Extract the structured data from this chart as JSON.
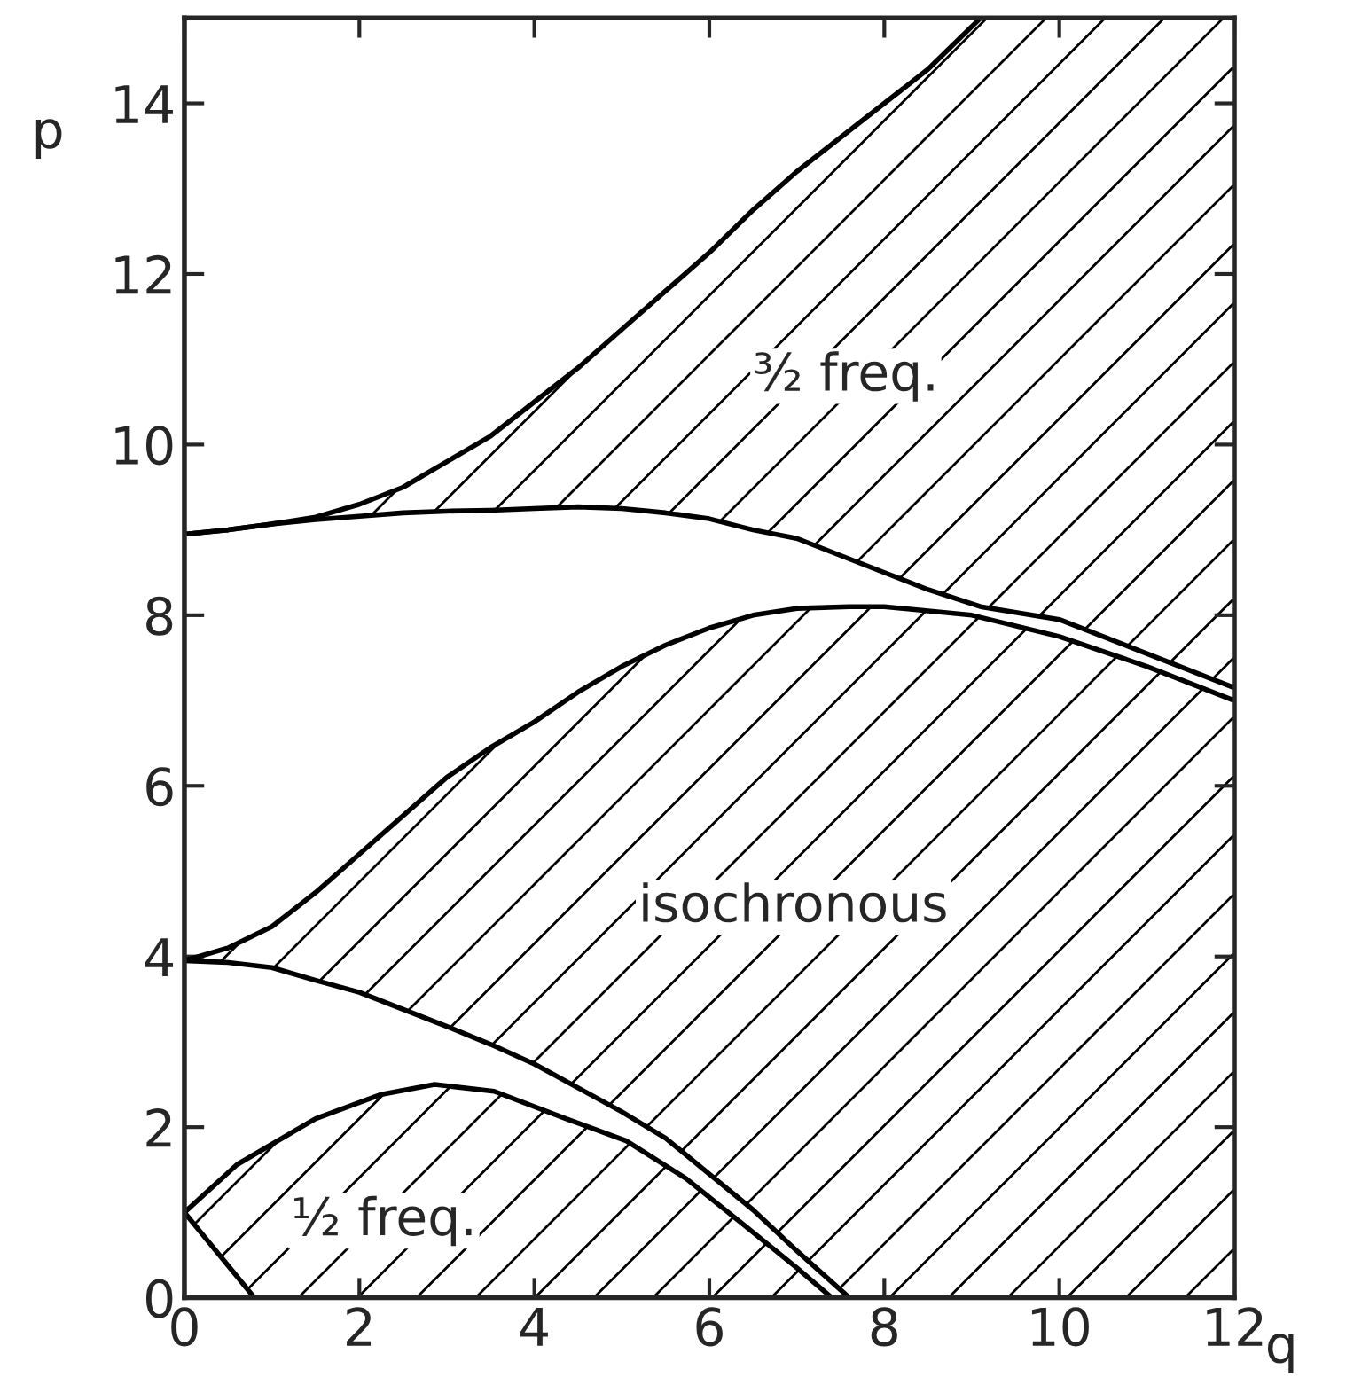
{
  "chart_data": {
    "type": "line",
    "xlabel": "q",
    "ylabel": "p",
    "xlim": [
      0,
      12
    ],
    "ylim": [
      0,
      15
    ],
    "xticks": [
      0,
      2,
      4,
      6,
      8,
      10,
      12
    ],
    "yticks": [
      0,
      2,
      4,
      6,
      8,
      10,
      12,
      14
    ],
    "grid": false,
    "legend": false,
    "marker": "none",
    "line_style": "solid",
    "series": [
      {
        "color": "#000000",
        "x": [
          0,
          0.8
        ],
        "values": [
          1.0,
          0
        ]
      },
      {
        "color": "#000000",
        "x": [
          0,
          0.6,
          1.5,
          2.24,
          2.86,
          3.54,
          4.36,
          5.05,
          5.73,
          6.4,
          7.0,
          7.4
        ],
        "values": [
          1.0,
          1.56,
          2.1,
          2.38,
          2.5,
          2.42,
          2.1,
          1.84,
          1.4,
          0.85,
          0.35,
          0
        ]
      },
      {
        "color": "#000000",
        "x": [
          0,
          0.5,
          1,
          1.5,
          2,
          2.5,
          3,
          3.5,
          4,
          4.5,
          5,
          5.5,
          6,
          6.5,
          7,
          7.6
        ],
        "values": [
          3.95,
          3.93,
          3.87,
          3.72,
          3.58,
          3.38,
          3.18,
          2.97,
          2.74,
          2.46,
          2.18,
          1.87,
          1.45,
          1.03,
          0.55,
          0
        ]
      },
      {
        "color": "#000000",
        "x": [
          0,
          0.5,
          1,
          1.5,
          2,
          2.5,
          3,
          3.5,
          4,
          4.5,
          5,
          5.5,
          6,
          6.5,
          7,
          7.6,
          8,
          9,
          10,
          11,
          12
        ],
        "values": [
          3.95,
          4.1,
          4.35,
          4.75,
          5.2,
          5.65,
          6.1,
          6.45,
          6.75,
          7.1,
          7.4,
          7.65,
          7.85,
          8.0,
          8.08,
          8.1,
          8.1,
          8.0,
          7.75,
          7.4,
          7.0
        ]
      },
      {
        "color": "#000000",
        "x": [
          0,
          0.5,
          1,
          1.5,
          2,
          2.5,
          3,
          3.5,
          4,
          4.5,
          5,
          5.5,
          6,
          6.5,
          7,
          7.5,
          8,
          8.5,
          9.1,
          10,
          11,
          12
        ],
        "values": [
          8.95,
          9.0,
          9.07,
          9.12,
          9.16,
          9.2,
          9.22,
          9.23,
          9.25,
          9.27,
          9.25,
          9.2,
          9.13,
          9.0,
          8.9,
          8.7,
          8.5,
          8.3,
          8.1,
          7.95,
          7.55,
          7.15
        ]
      },
      {
        "color": "#000000",
        "x": [
          0,
          0.5,
          1,
          1.5,
          2,
          2.5,
          3,
          3.5,
          4,
          4.5,
          5,
          5.5,
          6,
          6.5,
          7,
          7.5,
          8,
          8.5,
          9.1
        ],
        "values": [
          8.95,
          9.0,
          9.07,
          9.15,
          9.3,
          9.5,
          9.8,
          10.1,
          10.5,
          10.9,
          11.35,
          11.8,
          12.25,
          12.75,
          13.2,
          13.6,
          14.0,
          14.4,
          15
        ]
      }
    ],
    "annotations": [
      "½ freq.",
      "isochronous",
      "³⁄₂ freq."
    ]
  }
}
